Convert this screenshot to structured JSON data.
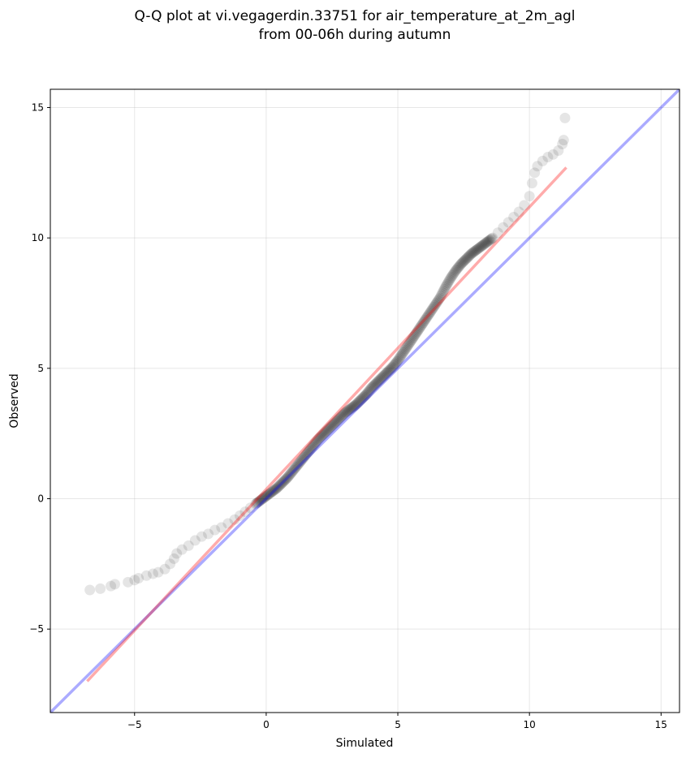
{
  "chart_data": {
    "type": "scatter",
    "title_line1": "Q-Q plot at vi.vegagerdin.33751 for air_temperature_at_2m_agl",
    "title_line2": "from 00-06h during autumn",
    "xlabel": "Simulated",
    "ylabel": "Observed",
    "xlim": [
      -8.2,
      15.7
    ],
    "ylim": [
      -8.2,
      15.7
    ],
    "xticks": [
      -5,
      0,
      5,
      10,
      15
    ],
    "yticks": [
      -5,
      0,
      5,
      10,
      15
    ],
    "xtick_labels": [
      "−5",
      "0",
      "5",
      "10",
      "15"
    ],
    "ytick_labels": [
      "−5",
      "0",
      "5",
      "10",
      "15"
    ],
    "grid": true,
    "identity_line": {
      "color": "#0000ff",
      "points": [
        [
          -8.2,
          -8.2
        ],
        [
          15.7,
          15.7
        ]
      ]
    },
    "fit_line": {
      "color": "#ff0000",
      "points": [
        [
          -6.8,
          -7.0
        ],
        [
          11.4,
          12.7
        ]
      ]
    },
    "point_color": "#000000",
    "quantiles": [
      [
        -6.7,
        -3.5
      ],
      [
        -6.3,
        -3.45
      ],
      [
        -5.9,
        -3.35
      ],
      [
        -5.75,
        -3.28
      ],
      [
        -5.25,
        -3.2
      ],
      [
        -5.0,
        -3.12
      ],
      [
        -4.85,
        -3.05
      ],
      [
        -4.55,
        -2.95
      ],
      [
        -4.3,
        -2.88
      ],
      [
        -4.1,
        -2.82
      ],
      [
        -3.85,
        -2.7
      ],
      [
        -3.65,
        -2.5
      ],
      [
        -3.5,
        -2.3
      ],
      [
        -3.4,
        -2.1
      ],
      [
        -3.2,
        -1.95
      ],
      [
        -2.95,
        -1.8
      ],
      [
        -2.7,
        -1.6
      ],
      [
        -2.45,
        -1.45
      ],
      [
        -2.2,
        -1.35
      ],
      [
        -1.95,
        -1.2
      ],
      [
        -1.7,
        -1.1
      ],
      [
        -1.45,
        -0.95
      ],
      [
        -1.2,
        -0.8
      ],
      [
        -1.0,
        -0.65
      ],
      [
        -0.8,
        -0.5
      ],
      [
        -0.6,
        -0.35
      ],
      [
        -0.4,
        -0.2
      ],
      [
        -0.2,
        -0.05
      ],
      [
        0.0,
        0.1
      ],
      [
        0.2,
        0.25
      ],
      [
        0.4,
        0.4
      ],
      [
        0.6,
        0.6
      ],
      [
        0.8,
        0.8
      ],
      [
        1.0,
        1.05
      ],
      [
        1.2,
        1.3
      ],
      [
        1.4,
        1.55
      ],
      [
        1.6,
        1.8
      ],
      [
        1.8,
        2.05
      ],
      [
        2.0,
        2.3
      ],
      [
        2.2,
        2.5
      ],
      [
        2.4,
        2.7
      ],
      [
        2.6,
        2.9
      ],
      [
        2.8,
        3.1
      ],
      [
        3.0,
        3.3
      ],
      [
        3.2,
        3.45
      ],
      [
        3.4,
        3.6
      ],
      [
        3.6,
        3.8
      ],
      [
        3.8,
        4.0
      ],
      [
        4.0,
        4.25
      ],
      [
        4.2,
        4.45
      ],
      [
        4.4,
        4.65
      ],
      [
        4.6,
        4.85
      ],
      [
        4.8,
        5.05
      ],
      [
        5.0,
        5.3
      ],
      [
        5.2,
        5.6
      ],
      [
        5.4,
        5.9
      ],
      [
        5.6,
        6.2
      ],
      [
        5.8,
        6.5
      ],
      [
        6.0,
        6.8
      ],
      [
        6.2,
        7.1
      ],
      [
        6.4,
        7.4
      ],
      [
        6.6,
        7.7
      ],
      [
        6.8,
        8.1
      ],
      [
        7.0,
        8.45
      ],
      [
        7.2,
        8.75
      ],
      [
        7.4,
        9.0
      ],
      [
        7.6,
        9.2
      ],
      [
        7.8,
        9.4
      ],
      [
        8.0,
        9.55
      ],
      [
        8.2,
        9.7
      ],
      [
        8.4,
        9.85
      ],
      [
        8.6,
        10.0
      ],
      [
        8.8,
        10.2
      ],
      [
        9.0,
        10.4
      ],
      [
        9.2,
        10.6
      ],
      [
        9.4,
        10.8
      ],
      [
        9.6,
        11.0
      ],
      [
        9.8,
        11.25
      ],
      [
        10.0,
        11.6
      ],
      [
        10.1,
        12.1
      ],
      [
        10.2,
        12.5
      ],
      [
        10.3,
        12.75
      ],
      [
        10.5,
        12.95
      ],
      [
        10.7,
        13.1
      ],
      [
        10.9,
        13.2
      ],
      [
        11.1,
        13.35
      ],
      [
        11.25,
        13.6
      ],
      [
        11.3,
        13.75
      ],
      [
        11.35,
        14.6
      ]
    ]
  }
}
